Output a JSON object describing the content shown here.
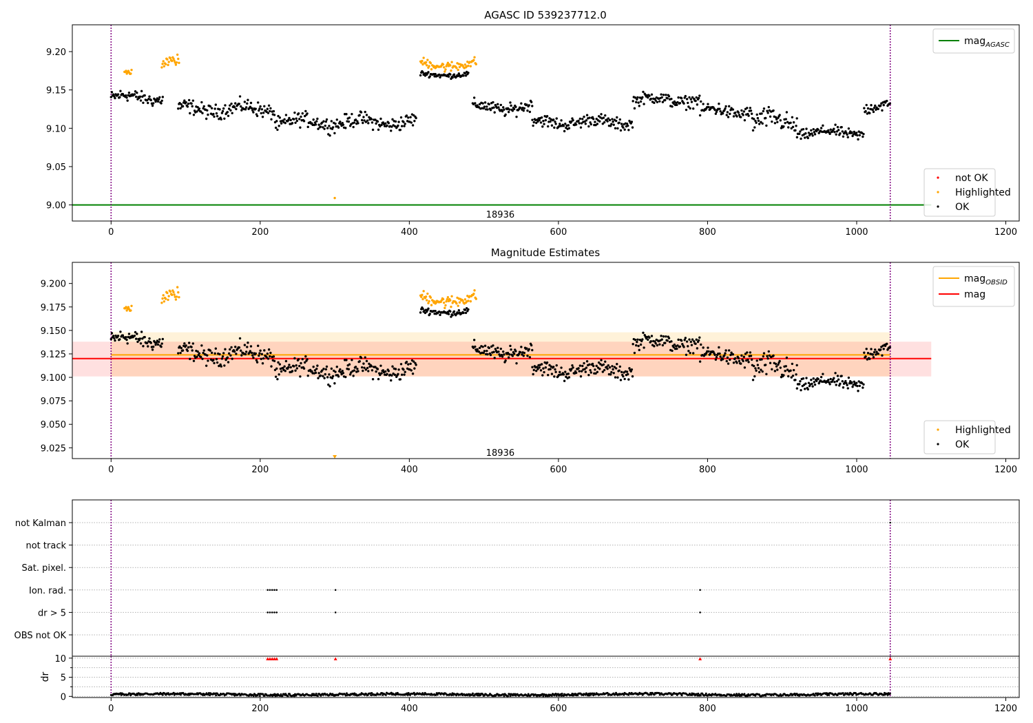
{
  "chart_data": [
    {
      "type": "scatter",
      "title": "AGASC ID 539237712.0",
      "xlabel": "",
      "ylabel": "",
      "xlim": [
        -52,
        1218
      ],
      "ylim": [
        8.979,
        9.235
      ],
      "xticks": [
        0,
        200,
        400,
        600,
        800,
        1000,
        1200
      ],
      "yticks": [
        9.0,
        9.05,
        9.1,
        9.15,
        9.2
      ],
      "ytick_decimals": 2,
      "grid": false,
      "vlines": [
        0,
        1045
      ],
      "hlines": [
        {
          "name": "mag_AGASC",
          "y": 9.0,
          "x": [
            -52,
            1100
          ],
          "color": "#008000"
        }
      ],
      "annotations": [
        {
          "text": "18936",
          "x": 522,
          "y": 8.988
        }
      ],
      "legend_lines": {
        "placement": "top-right",
        "entries": [
          {
            "name": "mag",
            "sub": "AGASC",
            "color": "#008000"
          }
        ]
      },
      "legend_points": {
        "placement": "bottom-right",
        "entries": [
          {
            "name": "not OK",
            "color": "#ff0000"
          },
          {
            "name": "Highlighted",
            "color": "#ffa500"
          },
          {
            "name": "OK",
            "color": "#000000"
          }
        ]
      },
      "series": [
        {
          "name": "OK",
          "color": "#000000",
          "segments": [
            {
              "x": [
                0,
                70
              ],
              "base": 9.14,
              "amp": 0.012
            },
            {
              "x": [
                90,
                220
              ],
              "base": 9.125,
              "amp": 0.014
            },
            {
              "x": [
                220,
                410
              ],
              "base": 9.108,
              "amp": 0.014
            },
            {
              "x": [
                415,
                480
              ],
              "base": 9.17,
              "amp": 0.005
            },
            {
              "x": [
                485,
                565
              ],
              "base": 9.127,
              "amp": 0.012
            },
            {
              "x": [
                565,
                700
              ],
              "base": 9.108,
              "amp": 0.012
            },
            {
              "x": [
                700,
                790
              ],
              "base": 9.137,
              "amp": 0.012
            },
            {
              "x": [
                790,
                860
              ],
              "base": 9.122,
              "amp": 0.013
            },
            {
              "x": [
                860,
                920
              ],
              "base": 9.108,
              "amp": 0.02
            },
            {
              "x": [
                920,
                1010
              ],
              "base": 9.094,
              "amp": 0.01
            },
            {
              "x": [
                1010,
                1045
              ],
              "base": 9.127,
              "amp": 0.012
            }
          ]
        },
        {
          "name": "Highlighted",
          "color": "#ffa500",
          "segments": [
            {
              "x": [
                18,
                28
              ],
              "base": 9.172,
              "amp": 0.005
            },
            {
              "x": [
                68,
                92
              ],
              "base": 9.187,
              "amp": 0.01
            },
            {
              "x": [
                415,
                490
              ],
              "base": 9.183,
              "amp": 0.01
            }
          ],
          "points": [
            {
              "x": 300,
              "y": 9.009
            }
          ]
        }
      ]
    },
    {
      "type": "scatter",
      "title": "Magnitude Estimates",
      "xlabel": "",
      "ylabel": "",
      "xlim": [
        -52,
        1218
      ],
      "ylim": [
        9.0135,
        9.2225
      ],
      "xticks": [
        0,
        200,
        400,
        600,
        800,
        1000,
        1200
      ],
      "yticks": [
        9.025,
        9.05,
        9.075,
        9.1,
        9.125,
        9.15,
        9.175,
        9.2
      ],
      "ytick_decimals": 3,
      "grid": false,
      "vlines": [
        0,
        1045
      ],
      "bands": [
        {
          "name": "mag_OBSID range",
          "y": [
            9.101,
            9.148
          ],
          "x": [
            0,
            1045
          ],
          "color": "#ffa500",
          "opacity": 0.15
        },
        {
          "name": "mag range",
          "y": [
            9.101,
            9.138
          ],
          "x": [
            -52,
            1100
          ],
          "color": "#ff0000",
          "opacity": 0.12
        }
      ],
      "hlines": [
        {
          "name": "mag_OBSID",
          "y": 9.124,
          "x": [
            0,
            1045
          ],
          "color": "#ffa500"
        },
        {
          "name": "mag",
          "y": 9.12,
          "x": [
            -52,
            1100
          ],
          "color": "#ff0000"
        }
      ],
      "annotations": [
        {
          "text": "18936",
          "x": 522,
          "y": 9.02
        }
      ],
      "legend_lines": {
        "placement": "top-right",
        "entries": [
          {
            "name": "mag",
            "sub": "OBSID",
            "color": "#ffa500"
          },
          {
            "name": "mag",
            "sub": "",
            "color": "#ff0000"
          }
        ]
      },
      "legend_points": {
        "placement": "bottom-right",
        "entries": [
          {
            "name": "Highlighted",
            "color": "#ffa500"
          },
          {
            "name": "OK",
            "color": "#000000"
          }
        ]
      },
      "series": [
        {
          "name": "OK",
          "color": "#000000",
          "segments": [
            {
              "x": [
                0,
                70
              ],
              "base": 9.14,
              "amp": 0.012
            },
            {
              "x": [
                90,
                220
              ],
              "base": 9.125,
              "amp": 0.014
            },
            {
              "x": [
                220,
                410
              ],
              "base": 9.108,
              "amp": 0.014
            },
            {
              "x": [
                415,
                480
              ],
              "base": 9.17,
              "amp": 0.005
            },
            {
              "x": [
                485,
                565
              ],
              "base": 9.127,
              "amp": 0.012
            },
            {
              "x": [
                565,
                700
              ],
              "base": 9.108,
              "amp": 0.012
            },
            {
              "x": [
                700,
                790
              ],
              "base": 9.137,
              "amp": 0.012
            },
            {
              "x": [
                790,
                860
              ],
              "base": 9.122,
              "amp": 0.013
            },
            {
              "x": [
                860,
                920
              ],
              "base": 9.108,
              "amp": 0.02
            },
            {
              "x": [
                920,
                1010
              ],
              "base": 9.094,
              "amp": 0.01
            },
            {
              "x": [
                1010,
                1045
              ],
              "base": 9.127,
              "amp": 0.012
            }
          ]
        },
        {
          "name": "Highlighted",
          "color": "#ffa500",
          "segments": [
            {
              "x": [
                18,
                28
              ],
              "base": 9.172,
              "amp": 0.005
            },
            {
              "x": [
                68,
                92
              ],
              "base": 9.187,
              "amp": 0.01
            },
            {
              "x": [
                415,
                490
              ],
              "base": 9.183,
              "amp": 0.01
            }
          ],
          "points": [
            {
              "x": 300,
              "y": 9.015,
              "marker": "triangle-down"
            }
          ]
        }
      ]
    },
    {
      "type": "scatter",
      "title": "",
      "xlabel": "",
      "ylabel": "",
      "xlim": [
        -52,
        1218
      ],
      "categories": [
        "not Kalman",
        "not track",
        "Sat. pixel.",
        "Ion. rad.",
        "dr > 5",
        "OBS not OK"
      ],
      "grid": true,
      "vlines": [
        0,
        1045
      ],
      "flags": [
        {
          "category": "not Kalman",
          "x": [
            1045
          ]
        },
        {
          "category": "Ion. rad.",
          "x": [
            210,
            213,
            216,
            219,
            222,
            301,
            790
          ]
        },
        {
          "category": "dr > 5",
          "x": [
            210,
            213,
            216,
            219,
            222,
            301,
            790
          ]
        }
      ]
    },
    {
      "type": "scatter",
      "title": "",
      "xlabel": "",
      "ylabel": "dr",
      "xlim": [
        -52,
        1218
      ],
      "ylim": [
        -0.3,
        10.5
      ],
      "yticks": [
        0,
        5,
        10
      ],
      "minor_yticks": [
        2.5,
        7.5
      ],
      "grid": true,
      "vlines": [
        0,
        1045
      ],
      "series": [
        {
          "name": "dr",
          "color": "#000000",
          "x_range": [
            0,
            1045
          ],
          "base": 0.5,
          "amp": 0.3
        },
        {
          "name": "dr clipped",
          "color": "#ff0000",
          "marker": "triangle-up",
          "x": [
            210,
            213,
            216,
            219,
            222,
            301,
            790,
            1045
          ],
          "y": 9.8
        }
      ]
    }
  ]
}
